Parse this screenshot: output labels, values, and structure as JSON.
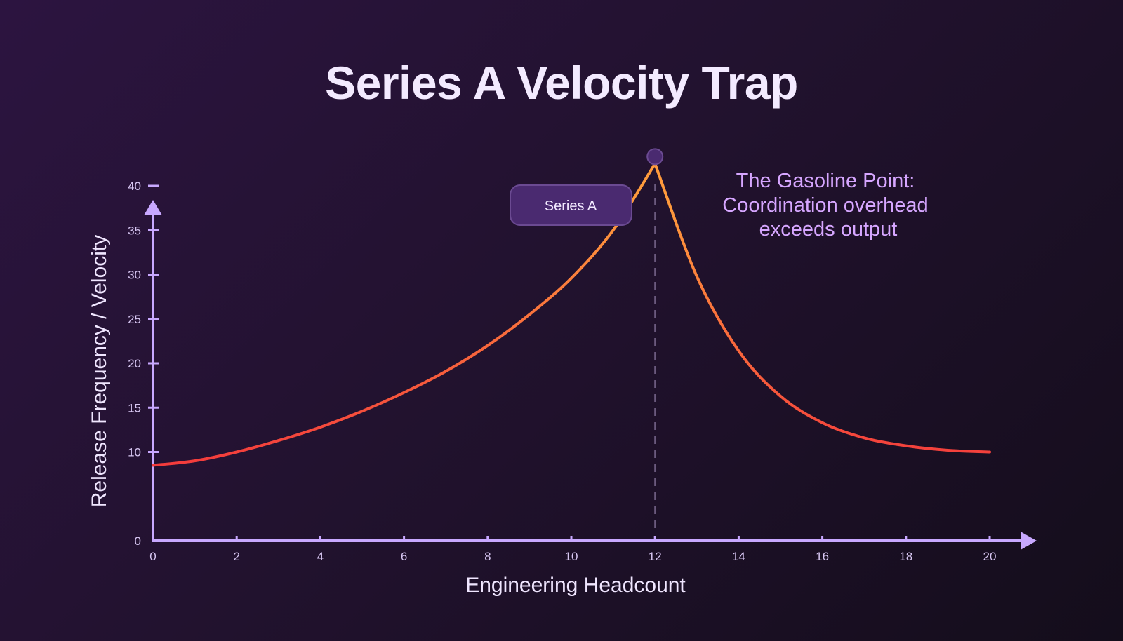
{
  "chart_data": {
    "type": "line",
    "title": "Series A Velocity Trap",
    "xlabel": "Engineering Headcount",
    "ylabel": "Release Frequency / Velocity",
    "xlim": [
      0,
      20
    ],
    "ylim": [
      0,
      40
    ],
    "x_ticks": [
      0,
      2,
      4,
      6,
      8,
      10,
      12,
      14,
      16,
      18,
      20
    ],
    "y_ticks": [
      0,
      10,
      15,
      20,
      25,
      30,
      35,
      40
    ],
    "series": [
      {
        "name": "Velocity",
        "x": [
          0,
          1,
          2,
          3,
          4,
          5,
          6,
          7,
          8,
          9,
          10,
          11,
          12,
          13,
          14,
          15,
          16,
          17,
          18,
          19,
          20
        ],
        "values": [
          8.5,
          9.0,
          10.0,
          11.3,
          12.8,
          14.6,
          16.7,
          19.1,
          22.0,
          25.5,
          29.6,
          35.0,
          42.5,
          29.8,
          21.4,
          16.3,
          13.3,
          11.6,
          10.7,
          10.2,
          10.0
        ]
      }
    ],
    "peak": {
      "x": 12,
      "y": 42.5,
      "badge": "Series A"
    },
    "annotation": [
      "The Gasoline Point:",
      "Coordination overhead",
      "exceeds output"
    ],
    "colors": {
      "low": "#f0203c",
      "high": "#ff9a3c",
      "axis": "#c8a8ff",
      "marker": "#4a2a70"
    }
  }
}
